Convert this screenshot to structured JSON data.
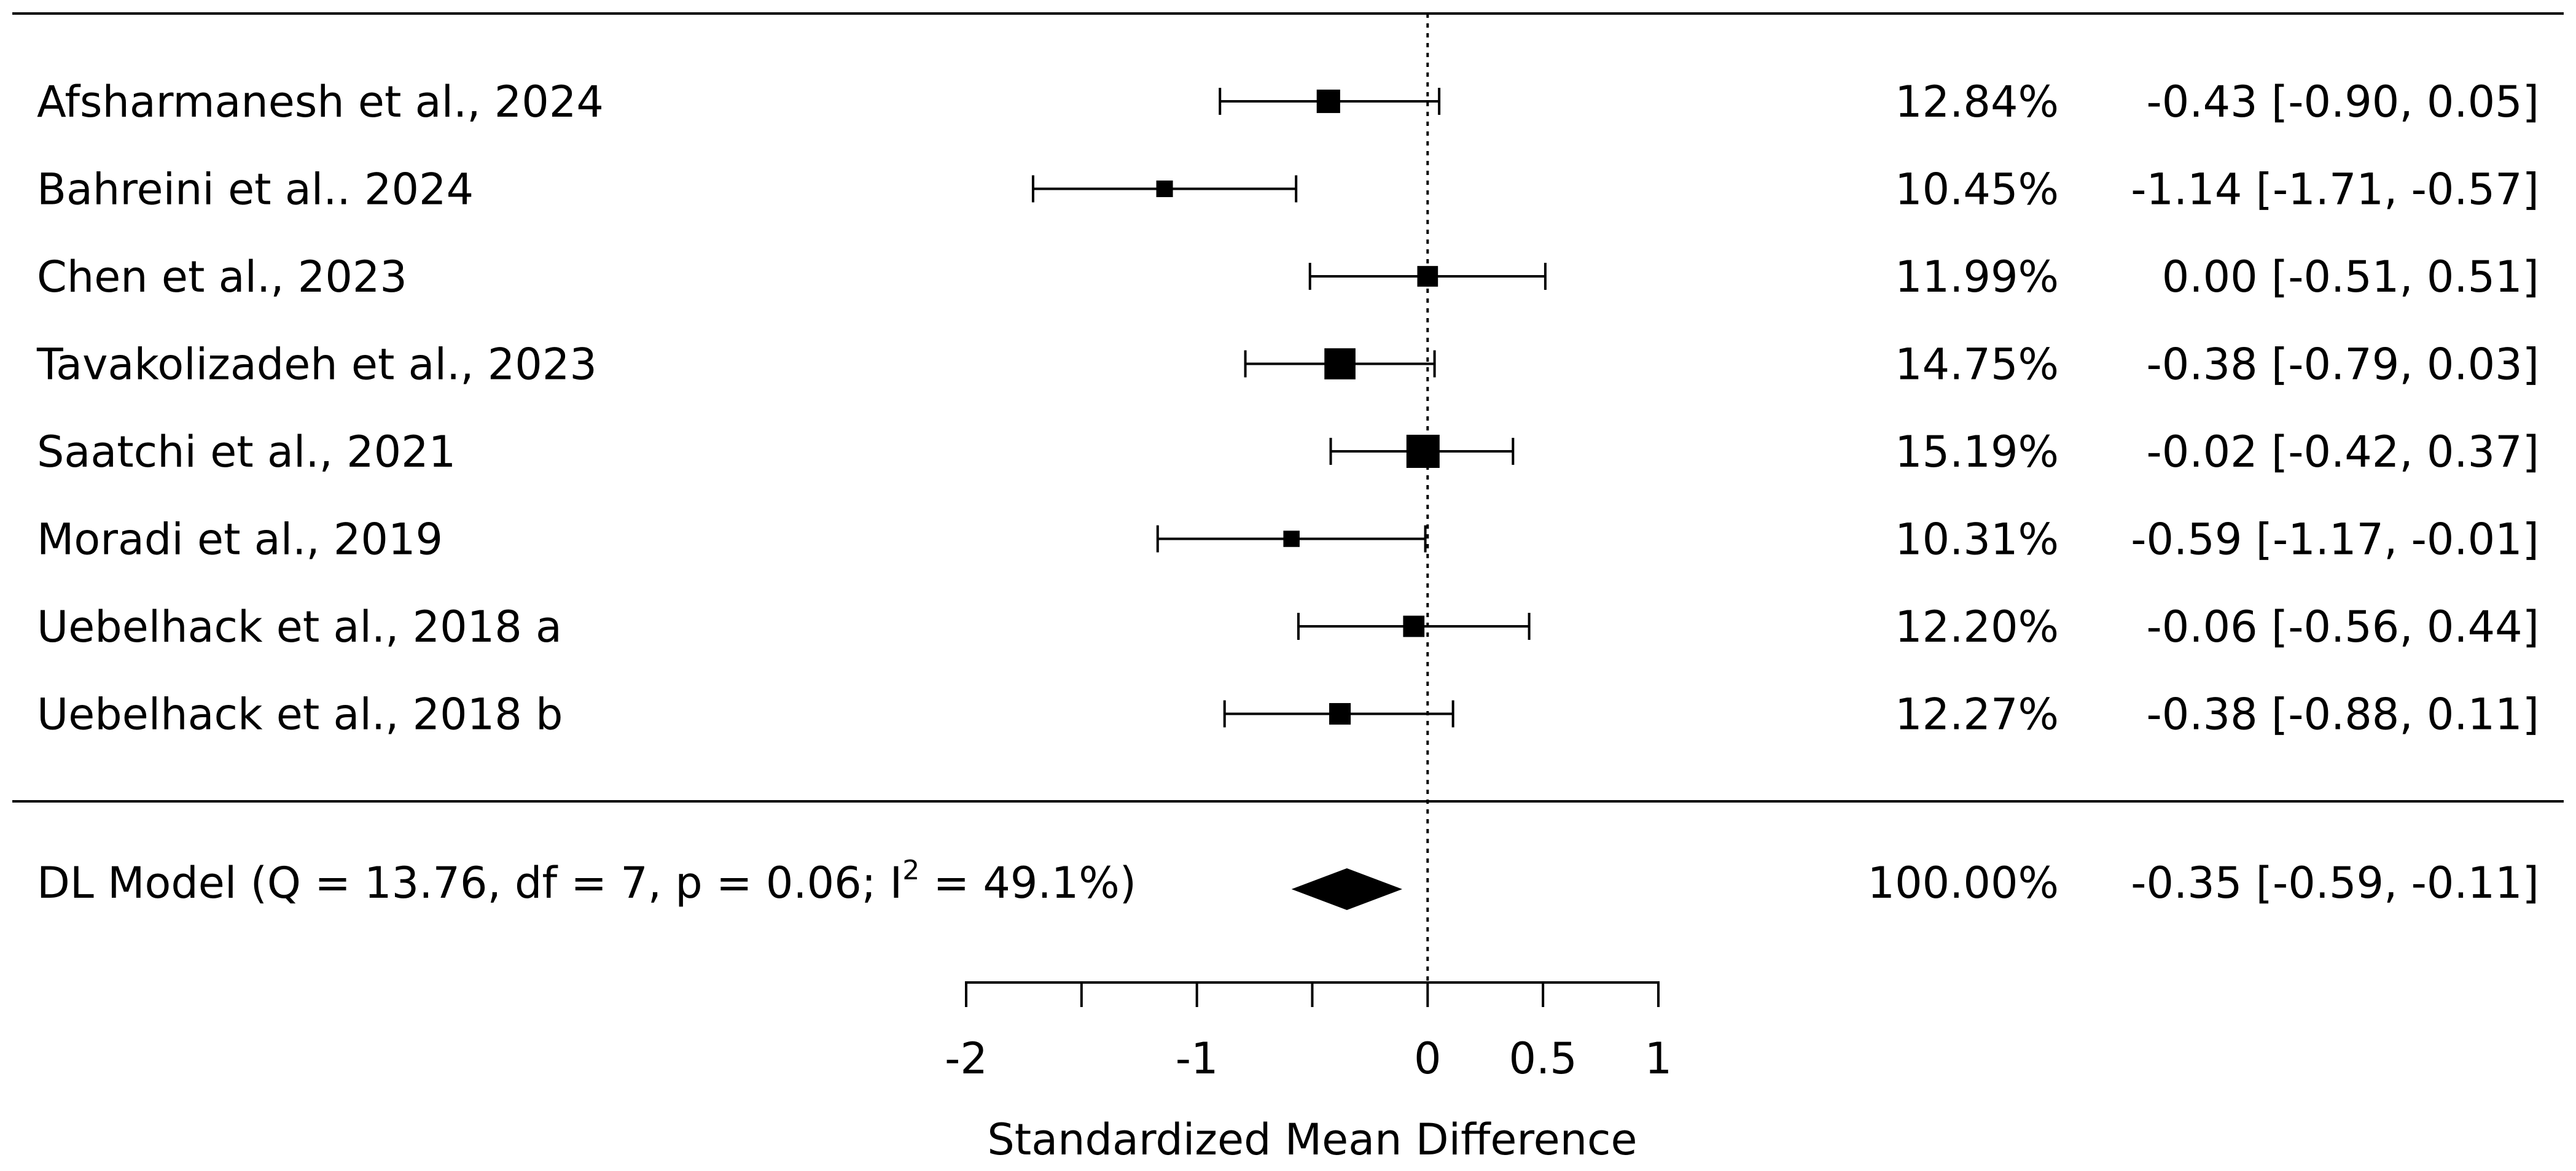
{
  "chart_data": {
    "type": "forest",
    "xlabel": "Standardized Mean Difference",
    "xlim": [
      -2,
      1
    ],
    "x_ticks": [
      -2,
      -1.5,
      -1,
      -0.5,
      0,
      0.5,
      1
    ],
    "x_tick_labels": [
      "-2",
      "-1",
      "0",
      "0.5",
      "1"
    ],
    "x_tick_label_values": [
      -2,
      -1,
      0,
      0.5,
      1
    ],
    "reference_line": 0,
    "studies": [
      {
        "label": "Afsharmanesh et al., 2024",
        "weight": "12.84%",
        "ci_text": "-0.43 [-0.90,  0.05]",
        "estimate": -0.43,
        "lower": -0.9,
        "upper": 0.05,
        "weight_value": 12.84
      },
      {
        "label": "Bahreini et al.. 2024",
        "weight": "10.45%",
        "ci_text": "-1.14 [-1.71, -0.57]",
        "estimate": -1.14,
        "lower": -1.71,
        "upper": -0.57,
        "weight_value": 10.45
      },
      {
        "label": "Chen et al., 2023",
        "weight": "11.99%",
        "ci_text": "0.00 [-0.51,  0.51]",
        "estimate": 0.0,
        "lower": -0.51,
        "upper": 0.51,
        "weight_value": 11.99
      },
      {
        "label": "Tavakolizadeh et al., 2023",
        "weight": "14.75%",
        "ci_text": "-0.38 [-0.79,  0.03]",
        "estimate": -0.38,
        "lower": -0.79,
        "upper": 0.03,
        "weight_value": 14.75
      },
      {
        "label": "Saatchi et al., 2021",
        "weight": "15.19%",
        "ci_text": "-0.02 [-0.42,  0.37]",
        "estimate": -0.02,
        "lower": -0.42,
        "upper": 0.37,
        "weight_value": 15.19
      },
      {
        "label": "Moradi et al., 2019",
        "weight": "10.31%",
        "ci_text": "-0.59 [-1.17, -0.01]",
        "estimate": -0.59,
        "lower": -1.17,
        "upper": -0.01,
        "weight_value": 10.31
      },
      {
        "label": "Uebelhack et al., 2018 a",
        "weight": "12.20%",
        "ci_text": "-0.06 [-0.56,  0.44]",
        "estimate": -0.06,
        "lower": -0.56,
        "upper": 0.44,
        "weight_value": 12.2
      },
      {
        "label": "Uebelhack et al., 2018 b",
        "weight": "12.27%",
        "ci_text": "-0.38 [-0.88,  0.11]",
        "estimate": -0.38,
        "lower": -0.88,
        "upper": 0.11,
        "weight_value": 12.27
      }
    ],
    "summary": {
      "label_prefix": "DL Model (Q = 13.76, df = 7, p = 0.06; I",
      "label_sup": "2",
      "label_suffix": " = 49.1%)",
      "weight": "100.00%",
      "ci_text": "-0.35 [-0.59, -0.11]",
      "estimate": -0.35,
      "lower": -0.59,
      "upper": -0.11
    }
  }
}
